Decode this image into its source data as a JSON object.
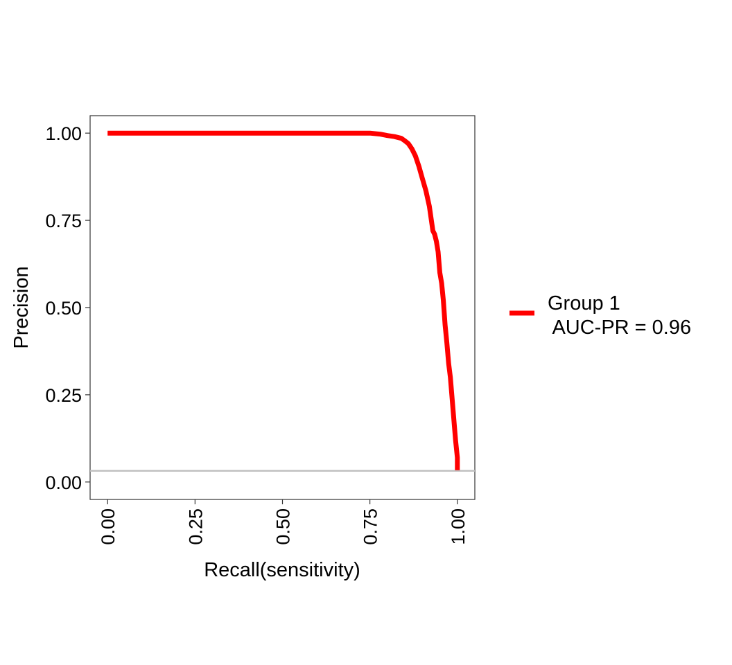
{
  "chart_data": {
    "type": "line",
    "xlabel": "Recall(sensitivity)",
    "ylabel": "Precision",
    "xlim": [
      -0.05,
      1.05
    ],
    "ylim": [
      -0.05,
      1.05
    ],
    "x_ticks": [
      "0.00",
      "0.25",
      "0.50",
      "0.75",
      "1.00"
    ],
    "y_ticks": [
      "0.00",
      "0.25",
      "0.50",
      "0.75",
      "1.00"
    ],
    "x_tick_rotation": "vertical",
    "grid": false,
    "legend_position": "right",
    "legend_line1": "Group 1",
    "legend_line2": " AUC-PR = 0.96",
    "baseline": {
      "y": 0.032,
      "color": "#bebebe"
    },
    "series": [
      {
        "name": "Group 1\n AUC-PR = 0.96",
        "color": "#ff0000",
        "x": [
          0.0,
          0.1,
          0.2,
          0.3,
          0.4,
          0.5,
          0.6,
          0.7,
          0.75,
          0.78,
          0.8,
          0.82,
          0.84,
          0.85,
          0.86,
          0.87,
          0.88,
          0.89,
          0.9,
          0.91,
          0.92,
          0.93,
          0.935,
          0.94,
          0.945,
          0.95,
          0.955,
          0.96,
          0.965,
          0.97,
          0.975,
          0.98,
          0.985,
          0.99,
          0.995,
          1.0,
          1.0
        ],
        "y": [
          1.0,
          1.0,
          1.0,
          1.0,
          1.0,
          1.0,
          1.0,
          1.0,
          1.0,
          0.997,
          0.993,
          0.99,
          0.985,
          0.978,
          0.97,
          0.955,
          0.935,
          0.905,
          0.87,
          0.835,
          0.79,
          0.72,
          0.71,
          0.69,
          0.66,
          0.6,
          0.57,
          0.52,
          0.45,
          0.4,
          0.34,
          0.3,
          0.24,
          0.18,
          0.12,
          0.07,
          0.034
        ]
      }
    ]
  }
}
